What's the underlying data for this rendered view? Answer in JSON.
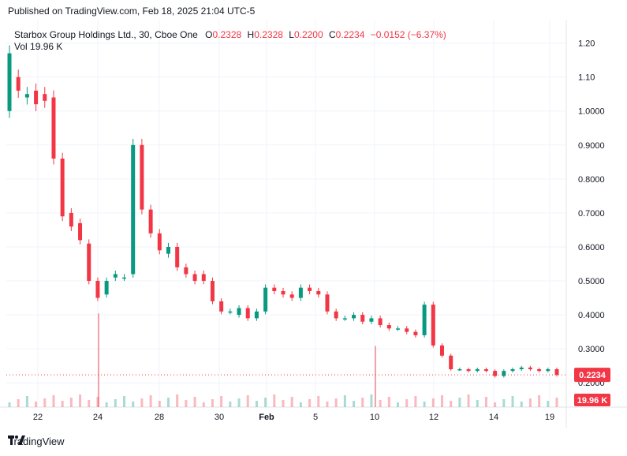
{
  "header": {
    "published": "Published on TradingView.com, Feb 18, 2025 21:04 UTC-5"
  },
  "legend": {
    "symbol": "Starbox Group Holdings Ltd., 30, Cboe One",
    "o_label": "O",
    "o_value": "0.2328",
    "h_label": "H",
    "h_value": "0.2328",
    "l_label": "L",
    "l_value": "0.2200",
    "c_label": "C",
    "c_value": "0.2234",
    "change": "−0.0152 (−6.37%)",
    "vol_label": "Vol",
    "vol_value": "19.96 K"
  },
  "footer": {
    "brand": "TradingView"
  },
  "colors": {
    "up": "#089981",
    "down": "#f23645",
    "grid": "#f0f3fa",
    "axis": "#131722"
  },
  "chart_data": {
    "type": "candlestick",
    "x_ticks": [
      "22",
      "24",
      "28",
      "30",
      "Feb",
      "5",
      "10",
      "12",
      "14",
      "19"
    ],
    "y_ticks": [
      "1.20",
      "1.10",
      "1.0000",
      "0.9000",
      "0.8000",
      "0.7000",
      "0.6000",
      "0.5000",
      "0.4000",
      "0.3000",
      "0.2000"
    ],
    "ylim": [
      0.175,
      1.22
    ],
    "last_price": "0.2234",
    "last_volume": "19.96 K",
    "price_path": [
      [
        0,
        1.17,
        1.0
      ],
      [
        1,
        1.06,
        1.1
      ],
      [
        2,
        1.05,
        1.04
      ],
      [
        3,
        1.02,
        1.06
      ],
      [
        4,
        1.03,
        1.05
      ],
      [
        5,
        0.86,
        1.04
      ],
      [
        6,
        0.69,
        0.86
      ],
      [
        7,
        0.66,
        0.7
      ],
      [
        8,
        0.62,
        0.67
      ],
      [
        9,
        0.5,
        0.61
      ],
      [
        10,
        0.45,
        0.5
      ],
      [
        11,
        0.5,
        0.46
      ],
      [
        12,
        0.52,
        0.51
      ],
      [
        13,
        0.51,
        0.51
      ],
      [
        14,
        0.9,
        0.52
      ],
      [
        15,
        0.71,
        0.9
      ],
      [
        16,
        0.64,
        0.71
      ],
      [
        17,
        0.59,
        0.64
      ],
      [
        18,
        0.6,
        0.58
      ],
      [
        19,
        0.54,
        0.6
      ],
      [
        20,
        0.52,
        0.54
      ],
      [
        21,
        0.5,
        0.52
      ],
      [
        22,
        0.5,
        0.52
      ],
      [
        23,
        0.44,
        0.5
      ],
      [
        24,
        0.41,
        0.44
      ],
      [
        25,
        0.41,
        0.41
      ],
      [
        26,
        0.42,
        0.4
      ],
      [
        27,
        0.39,
        0.42
      ],
      [
        28,
        0.41,
        0.39
      ],
      [
        29,
        0.48,
        0.41
      ],
      [
        30,
        0.47,
        0.48
      ],
      [
        31,
        0.46,
        0.47
      ],
      [
        32,
        0.45,
        0.46
      ],
      [
        33,
        0.48,
        0.45
      ],
      [
        34,
        0.47,
        0.48
      ],
      [
        35,
        0.46,
        0.47
      ],
      [
        36,
        0.41,
        0.46
      ],
      [
        37,
        0.39,
        0.41
      ],
      [
        38,
        0.39,
        0.39
      ],
      [
        39,
        0.4,
        0.39
      ],
      [
        40,
        0.38,
        0.4
      ],
      [
        41,
        0.39,
        0.38
      ],
      [
        42,
        0.37,
        0.39
      ],
      [
        43,
        0.36,
        0.37
      ],
      [
        44,
        0.36,
        0.36
      ],
      [
        45,
        0.35,
        0.36
      ],
      [
        46,
        0.34,
        0.35
      ],
      [
        47,
        0.43,
        0.34
      ],
      [
        48,
        0.31,
        0.43
      ],
      [
        49,
        0.28,
        0.31
      ],
      [
        50,
        0.24,
        0.28
      ],
      [
        51,
        0.24,
        0.24
      ],
      [
        52,
        0.235,
        0.24
      ],
      [
        53,
        0.24,
        0.235
      ],
      [
        54,
        0.235,
        0.24
      ],
      [
        55,
        0.22,
        0.235
      ],
      [
        56,
        0.235,
        0.22
      ],
      [
        57,
        0.24,
        0.235
      ],
      [
        58,
        0.245,
        0.24
      ],
      [
        59,
        0.24,
        0.245
      ],
      [
        60,
        0.235,
        0.24
      ],
      [
        61,
        0.24,
        0.235
      ],
      [
        62,
        0.2234,
        0.24
      ]
    ],
    "volume_spikes": [
      [
        "24",
        0.95
      ],
      [
        "10",
        0.62
      ]
    ]
  }
}
